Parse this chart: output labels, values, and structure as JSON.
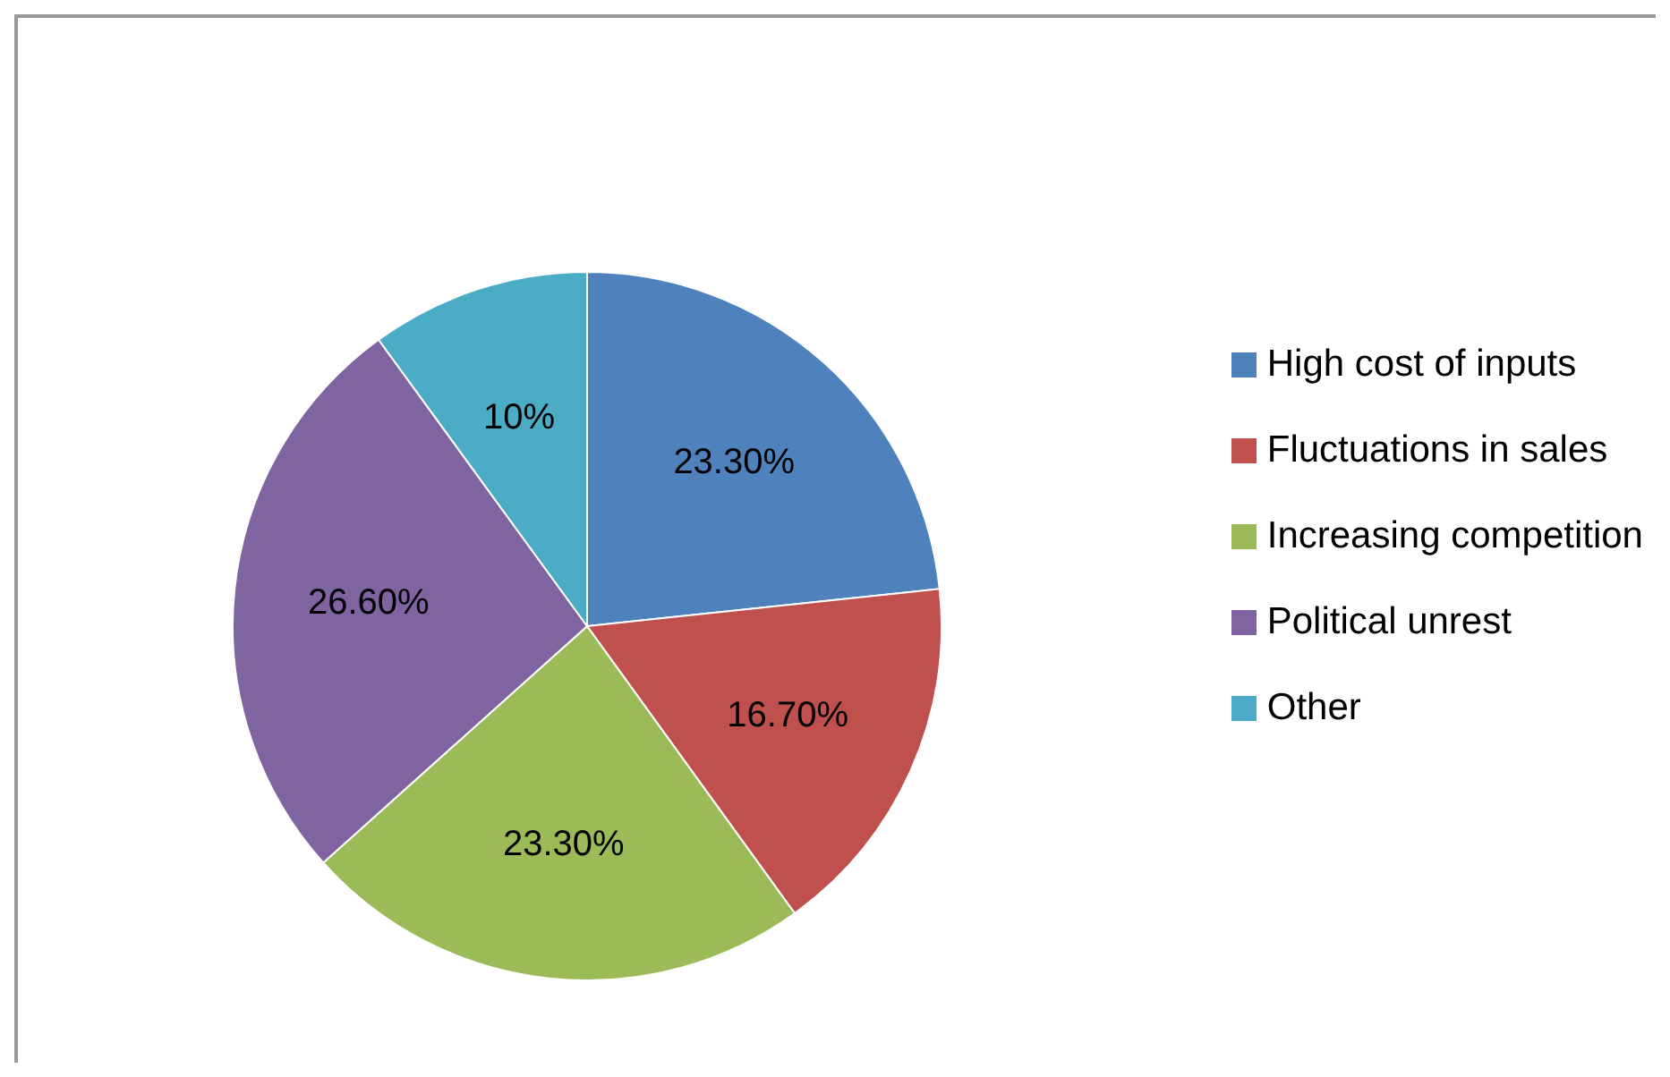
{
  "chart_data": {
    "type": "pie",
    "categories": [
      "High cost of inputs",
      "Fluctuations in sales",
      "Increasing competition",
      "Political unrest",
      "Other"
    ],
    "values": [
      23.3,
      16.7,
      23.3,
      26.6,
      10
    ],
    "value_labels": [
      "23.30%",
      "16.70%",
      "23.30%",
      "26.60%",
      "10%"
    ],
    "colors": [
      "#4f81bd",
      "#c0504d",
      "#9bbb59",
      "#8064a2",
      "#4bacc6"
    ],
    "legend": "right"
  }
}
